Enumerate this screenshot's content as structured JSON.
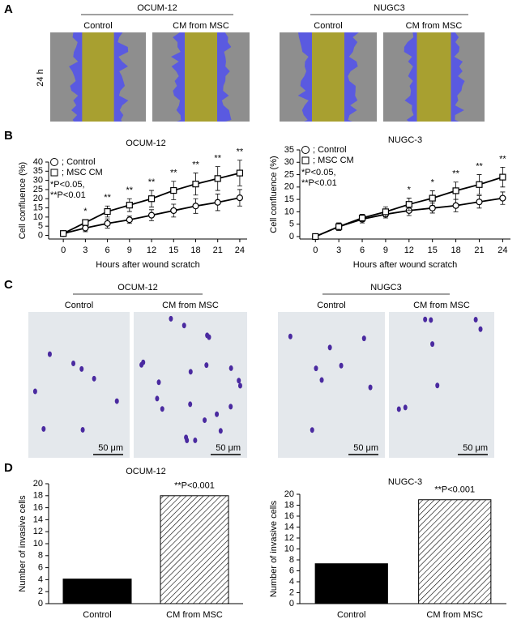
{
  "panel_labels": [
    "A",
    "B",
    "C",
    "D"
  ],
  "panel_a": {
    "row_label": "24 h",
    "groups": [
      {
        "title": "OCUM-12",
        "conditions": [
          "Control",
          "CM from MSC"
        ]
      },
      {
        "title": "NUGC3",
        "conditions": [
          "Control",
          "CM from MSC"
        ]
      }
    ]
  },
  "panel_c": {
    "scale_bar": "50 μm",
    "groups": [
      {
        "title": "OCUM-12",
        "conditions": [
          "Control",
          "CM from MSC"
        ]
      },
      {
        "title": "NUGC3",
        "conditions": [
          "Control",
          "CM from MSC"
        ]
      }
    ]
  },
  "chart_data": [
    {
      "type": "line",
      "title": "OCUM-12",
      "x_label": "Hours after wound scratch",
      "y_label": "Cell confluence (%)",
      "x": [
        0,
        3,
        6,
        9,
        12,
        15,
        18,
        21,
        24
      ],
      "xlim": [
        -2,
        25
      ],
      "xticks": [
        0,
        3,
        6,
        9,
        12,
        15,
        18,
        21,
        24
      ],
      "ylim": [
        -2,
        40
      ],
      "yticks": [
        0,
        5,
        10,
        15,
        20,
        25,
        30,
        35,
        40
      ],
      "series": [
        {
          "name": "; Control",
          "marker": "circle",
          "color": "#000000",
          "values": [
            1,
            4,
            6.5,
            8.5,
            11,
            13.5,
            16,
            18,
            20.5
          ],
          "errors": [
            0.5,
            2,
            2.5,
            2,
            3,
            3.5,
            4,
            4.5,
            4.5
          ]
        },
        {
          "name": "; MSC CM",
          "marker": "square",
          "color": "#000000",
          "values": [
            1,
            7,
            13,
            16.5,
            20,
            24.5,
            28,
            31,
            34
          ],
          "errors": [
            0.5,
            1.5,
            3,
            3.5,
            4.5,
            5,
            6,
            6.5,
            7
          ]
        }
      ],
      "significance": [
        null,
        "*",
        "**",
        "**",
        "**",
        "**",
        "**",
        "**",
        "**"
      ],
      "notes": [
        "*P<0.05,",
        "**P<0.01"
      ]
    },
    {
      "type": "line",
      "title": "NUGC-3",
      "x_label": "Hours after wound scratch",
      "y_label": "Cell confluence (%)",
      "x": [
        0,
        3,
        6,
        9,
        12,
        15,
        18,
        21,
        24
      ],
      "xlim": [
        -2,
        25
      ],
      "xticks": [
        0,
        3,
        6,
        9,
        12,
        15,
        18,
        21,
        24
      ],
      "ylim": [
        -1,
        35
      ],
      "yticks": [
        0,
        5,
        10,
        15,
        20,
        25,
        30,
        35
      ],
      "series": [
        {
          "name": "; Control",
          "marker": "circle",
          "color": "#000000",
          "values": [
            0,
            4,
            7,
            9,
            10.5,
            11.5,
            12.5,
            14,
            15.5
          ],
          "errors": [
            0.5,
            1.5,
            1.5,
            1.5,
            2,
            2,
            2.5,
            2.5,
            2.5
          ]
        },
        {
          "name": "; MSC CM",
          "marker": "square",
          "color": "#000000",
          "values": [
            0,
            4,
            7.5,
            10,
            13,
            15.5,
            18.5,
            21,
            24
          ],
          "errors": [
            0.5,
            1.5,
            1.5,
            2,
            2.5,
            3,
            3.5,
            4,
            4
          ]
        }
      ],
      "significance": [
        null,
        null,
        null,
        null,
        "*",
        "*",
        "**",
        "**",
        "**"
      ],
      "notes": [
        "*P<0.05,",
        "**P<0.01"
      ]
    },
    {
      "type": "bar",
      "title": "OCUM-12",
      "y_label": "Number of invasive cells",
      "categories": [
        "Control",
        "CM from MSC"
      ],
      "values": [
        4.1,
        18
      ],
      "hatched": [
        false,
        true
      ],
      "color": "#000000",
      "annotation": "**P<0.001",
      "ylim": [
        0,
        20
      ],
      "yticks": [
        0,
        2,
        4,
        6,
        8,
        10,
        12,
        14,
        16,
        18,
        20
      ]
    },
    {
      "type": "bar",
      "title": "NUGC-3",
      "y_label": "Number of invasive cells",
      "categories": [
        "Control",
        "CM from MSC"
      ],
      "values": [
        7.3,
        19
      ],
      "hatched": [
        false,
        true
      ],
      "color": "#000000",
      "annotation": "**P<0.001",
      "ylim": [
        0,
        20
      ],
      "yticks": [
        0,
        2,
        4,
        6,
        8,
        10,
        12,
        14,
        16,
        18,
        20
      ]
    }
  ]
}
